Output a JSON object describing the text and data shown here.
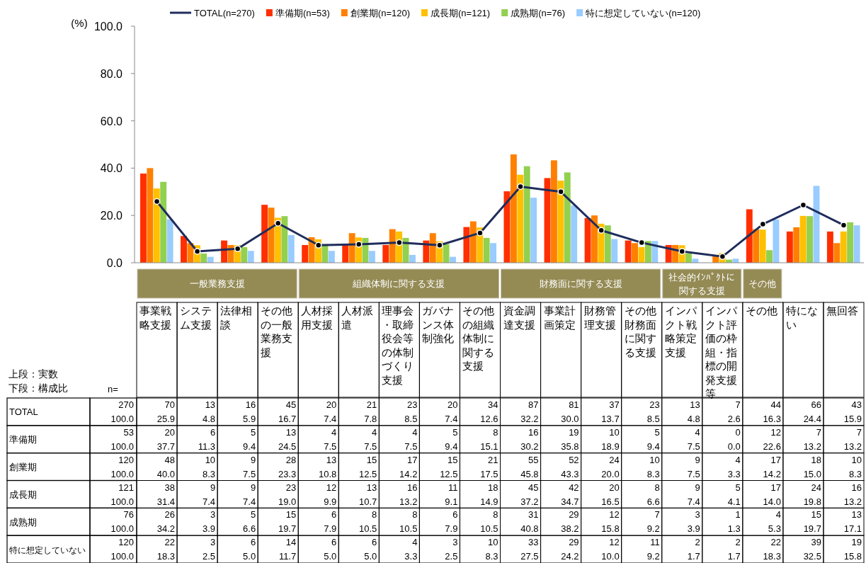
{
  "chart_data": {
    "type": "bar",
    "ylabel": "(%)",
    "ylim": [
      0,
      100
    ],
    "yticks": [
      {
        "value": 0,
        "label": "0.0"
      },
      {
        "value": 20,
        "label": "20.0"
      },
      {
        "value": 40,
        "label": "40.0"
      },
      {
        "value": 60,
        "label": "60.0"
      },
      {
        "value": 80,
        "label": "80.0"
      },
      {
        "value": 100,
        "label": "100.0"
      }
    ],
    "legend": "top",
    "grid": false,
    "categories": [
      "事業戦略支援",
      "システム支援",
      "法律相談",
      "その他の一般業務支援",
      "人材採用支援",
      "人材派遣",
      "理事会・取締役会等の体制づくり支援",
      "ガバナンス体制強化",
      "その他の組織体制に関する支援",
      "資金調達支援",
      "事業計画策定",
      "財務管理支援",
      "その他財務面に関する支援",
      "インパクト戦略策定支援",
      "インパクト評価の枠組・指標の開発支援等",
      "その他",
      "特にない",
      "無回答"
    ],
    "series": [
      {
        "name": "TOTAL(n=270)",
        "type": "line",
        "marker": "circle",
        "color": "#1f2d5c",
        "values": [
          25.9,
          4.8,
          5.9,
          16.7,
          7.4,
          7.8,
          8.5,
          7.4,
          12.6,
          32.2,
          30.0,
          13.7,
          8.5,
          4.8,
          2.6,
          16.3,
          24.4,
          15.9
        ],
        "value_labels": [
          "70\n25.9",
          "13\n4.8",
          "16\n5.9",
          "45\n16.7",
          "20\n7.4",
          "21\n7.8",
          "23\n8.5",
          "20\n7.4",
          "34\n12.6",
          "87\n32.2",
          "81\n30.0",
          "37\n13.7",
          "23\n8.5",
          "13\n4.8",
          "7\n2.6",
          "44\n16.3",
          "66\n24.4",
          "43\n15.9"
        ]
      },
      {
        "name": "準備期(n=53)",
        "color": "#ff2f00",
        "values": [
          37.7,
          11.3,
          9.4,
          24.5,
          7.5,
          7.5,
          7.5,
          9.4,
          15.1,
          30.2,
          35.8,
          18.9,
          9.4,
          7.5,
          0.0,
          22.6,
          13.2,
          13.2
        ],
        "value_labels": [
          "20\n37.7",
          "6\n11.3",
          "5\n9.4",
          "13\n24.5",
          "4\n7.5",
          "4\n7.5",
          "4\n7.5",
          "5\n9.4",
          "8\n15.1",
          "16\n30.2",
          "19\n35.8",
          "10\n18.9",
          "5\n9.4",
          "4\n7.5",
          "0\n0.0",
          "12\n22.6",
          "7\n13.2",
          "7\n13.2"
        ]
      },
      {
        "name": "創業期(n=120)",
        "color": "#ff8000",
        "values": [
          40.0,
          8.3,
          7.5,
          23.3,
          10.8,
          12.5,
          14.2,
          12.5,
          17.5,
          45.8,
          43.3,
          20.0,
          8.3,
          7.5,
          3.3,
          14.2,
          15.0,
          8.3
        ],
        "value_labels": [
          "48\n40.0",
          "10\n8.3",
          "9\n7.5",
          "28\n23.3",
          "13\n10.8",
          "15\n12.5",
          "17\n14.2",
          "15\n12.5",
          "21\n17.5",
          "55\n45.8",
          "52\n43.3",
          "24\n20.0",
          "10\n8.3",
          "9\n7.5",
          "4\n3.3",
          "17\n14.2",
          "18\n15.0",
          "10\n8.3"
        ]
      },
      {
        "name": "成長期(n=121)",
        "color": "#ffc000",
        "values": [
          31.4,
          7.4,
          7.4,
          19.0,
          9.9,
          10.7,
          13.2,
          9.1,
          14.9,
          37.2,
          34.7,
          16.5,
          6.6,
          7.4,
          4.1,
          14.0,
          19.8,
          13.2
        ],
        "value_labels": [
          "38\n31.4",
          "9\n7.4",
          "9\n7.4",
          "23\n19.0",
          "12\n9.9",
          "13\n10.7",
          "16\n13.2",
          "11\n9.1",
          "18\n14.9",
          "45\n37.2",
          "42\n34.7",
          "20\n16.5",
          "8\n6.6",
          "9\n7.4",
          "5\n4.1",
          "17\n14.0",
          "24\n19.8",
          "16\n13.2"
        ]
      },
      {
        "name": "成熟期(n=76)",
        "color": "#92d050",
        "values": [
          34.2,
          3.9,
          6.6,
          19.7,
          7.9,
          10.5,
          10.5,
          7.9,
          10.5,
          40.8,
          38.2,
          15.8,
          9.2,
          3.9,
          1.3,
          5.3,
          19.7,
          17.1
        ],
        "value_labels": [
          "26\n34.2",
          "3\n3.9",
          "5\n6.6",
          "15\n19.7",
          "6\n7.9",
          "8\n10.5",
          "8\n10.5",
          "6\n7.9",
          "8\n10.5",
          "31\n40.8",
          "29\n38.2",
          "12\n15.8",
          "7\n9.2",
          "3\n3.9",
          "1\n1.3",
          "4\n5.3",
          "15\n19.7",
          "13\n17.1"
        ]
      },
      {
        "name": "特に想定していない(n=120)",
        "color": "#99ccff",
        "values": [
          18.3,
          2.5,
          5.0,
          11.7,
          5.0,
          5.0,
          3.3,
          2.5,
          8.3,
          27.5,
          24.2,
          10.0,
          9.2,
          1.7,
          1.7,
          18.3,
          32.5,
          15.8
        ],
        "value_labels": [
          "22\n18.3",
          "3\n2.5",
          "6\n5.0",
          "14\n11.7",
          "6\n5.0",
          "6\n5.0",
          "4\n3.3",
          "3\n2.5",
          "10\n8.3",
          "33\n27.5",
          "29\n24.2",
          "12\n10.0",
          "11\n9.2",
          "2\n1.7",
          "2\n1.7",
          "22\n18.3",
          "39\n32.5",
          "19\n15.8"
        ]
      }
    ],
    "annotations": [
      "上段：実数",
      "下段：構成比",
      "n=",
      "TOTAL",
      "準備期",
      "創業期",
      "成長期",
      "成熟期",
      "特に想定していない",
      "270\n100.0",
      "53\n100.0",
      "120\n100.0",
      "121\n100.0",
      "76\n100.0",
      "120\n100.0",
      "一般業務支援",
      "組織体制に関する支援",
      "財務面に関する支援",
      "社会的ｲﾝﾊﾟｸﾄに関する支援",
      "その他"
    ]
  }
}
